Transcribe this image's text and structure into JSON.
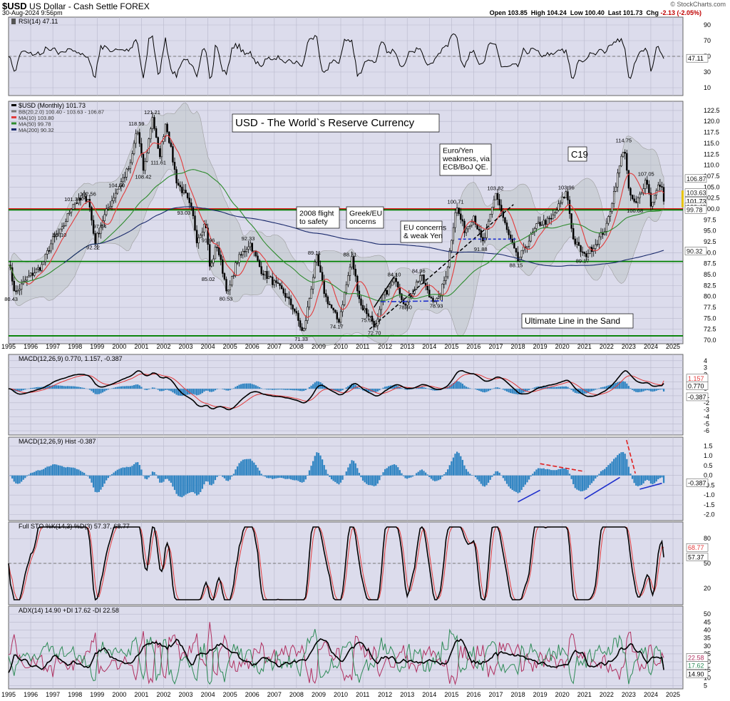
{
  "header": {
    "symbol": "$USD",
    "name": "US Dollar - Cash Settle FOREX",
    "date": "30-Aug-2024 9:56pm",
    "source": "© StockCharts.com",
    "open_label": "Open",
    "open": "103.85",
    "high_label": "High",
    "high": "104.24",
    "low_label": "Low",
    "low": "100.40",
    "last_label": "Last",
    "last": "101.73",
    "chg_label": "Chg",
    "chg": "-2.13 (-2.05%)"
  },
  "colors": {
    "panel_bg": "#dcdcec",
    "grid": "#b8b8cc",
    "price": "#000000",
    "bollinger": "#9e9e9e",
    "ma10": "#e23b3b",
    "ma50": "#2e8b2e",
    "ma200": "#1a2a6c",
    "hist": "#2f84c2",
    "red_line": "#e00000",
    "green_line": "#008000"
  },
  "x_axis": {
    "years": [
      "1995",
      "1996",
      "1997",
      "1998",
      "1999",
      "2000",
      "2001",
      "2002",
      "2003",
      "2004",
      "2005",
      "2006",
      "2007",
      "2008",
      "2009",
      "2010",
      "2011",
      "2012",
      "2013",
      "2014",
      "2015",
      "2016",
      "2017",
      "2018",
      "2019",
      "2020",
      "2021",
      "2022",
      "2023",
      "2024",
      "2025"
    ]
  },
  "panels": {
    "rsi": {
      "title": "RSI(14) 47.11",
      "ticks": [
        "90",
        "70",
        "50",
        "30",
        "10"
      ],
      "last": "47.11"
    },
    "price": {
      "legend": [
        "$USD (Monthly) 101.73",
        "BB(20,2.0) 100.40 - 103.63 - 106.87",
        "MA(10) 103.80",
        "MA(50) 99.78",
        "MA(200) 90.32"
      ],
      "ticks": [
        "122.5",
        "120.0",
        "117.5",
        "115.0",
        "112.5",
        "110.0",
        "107.5",
        "105.0",
        "102.5",
        "100.0",
        "97.5",
        "95.0",
        "92.5",
        "90.0",
        "87.5",
        "85.0",
        "82.5",
        "80.0",
        "77.5",
        "75.0",
        "72.5",
        "70.0"
      ],
      "right_labels": [
        "106.87",
        "103.63",
        "101.73",
        "100.40",
        "99.78",
        "90.32"
      ],
      "annotations": {
        "title": "USD - The World`s Reserve Currency",
        "flight": "2008 flight to safety",
        "greek": "Greek/EU Concerns",
        "eu": "EU concerns & weak Yen",
        "euro_yen": "Euro/Yen weakness, via ECB/BoJ QE.",
        "c19": "C19",
        "line_sand": "Ultimate Line in the Sand"
      },
      "point_labels": [
        "80.43",
        "101.34",
        "102.56",
        "95.10",
        "92.22",
        "97.04",
        "104.50",
        "118.59",
        "121.21",
        "108.42",
        "111.61",
        "93.03",
        "91.96",
        "85.02",
        "80.53",
        "92.33",
        "89.11",
        "71.33",
        "74.17",
        "88.71",
        "75.63",
        "72.70",
        "84.10",
        "84.96",
        "78.60",
        "78.93",
        "100.71",
        "91.88",
        "103.82",
        "88.15",
        "103.96",
        "89.17",
        "114.75",
        "100.68",
        "107.05"
      ]
    },
    "macd": {
      "title": "MACD(12,26,9) 0.770, 1.157, -0.387",
      "ticks": [
        "4",
        "3",
        "2",
        "1",
        "0",
        "-1",
        "-2",
        "-3",
        "-4",
        "-5",
        "-6"
      ],
      "right_labels": [
        "1.157",
        "0.770",
        "-0.387"
      ]
    },
    "hist": {
      "title": "MACD(12,26,9) Hist -0.387",
      "ticks": [
        "1.5",
        "1.0",
        "0.5",
        "0.0",
        "-0.5",
        "-1.0",
        "-1.5",
        "-2.0"
      ],
      "last": "-0.387"
    },
    "sto": {
      "title": "Full STO %K(14,3) %D(3) 57.37, 68.77",
      "ticks": [
        "80",
        "50",
        "20"
      ],
      "right_labels": [
        "68.77",
        "57.37"
      ]
    },
    "adx": {
      "title": "ADX(14) 14.90 +DI 17.62 -DI 22.58",
      "ticks": [
        "50",
        "45",
        "40",
        "35",
        "30",
        "25",
        "20",
        "15",
        "10",
        "5"
      ],
      "right_labels": [
        "22.58",
        "17.62",
        "14.90"
      ]
    }
  },
  "chart_data": {
    "type": "line",
    "title": "USD - The World`s Reserve Currency",
    "x_unit": "year",
    "price_keypoints": [
      [
        1995.0,
        88
      ],
      [
        1995.3,
        80.5
      ],
      [
        1995.8,
        84
      ],
      [
        1996.5,
        87
      ],
      [
        1997.0,
        93
      ],
      [
        1997.4,
        95.1
      ],
      [
        1997.9,
        101.3
      ],
      [
        1998.6,
        102.6
      ],
      [
        1998.9,
        92.2
      ],
      [
        1999.2,
        97
      ],
      [
        1999.9,
        104.5
      ],
      [
        2000.5,
        110
      ],
      [
        2000.8,
        118.6
      ],
      [
        2001.1,
        108.4
      ],
      [
        2001.5,
        121.2
      ],
      [
        2001.8,
        111.6
      ],
      [
        2002.1,
        120
      ],
      [
        2002.6,
        106
      ],
      [
        2003.0,
        103
      ],
      [
        2003.3,
        99
      ],
      [
        2003.5,
        93
      ],
      [
        2003.9,
        97
      ],
      [
        2004.1,
        86
      ],
      [
        2004.4,
        92
      ],
      [
        2004.9,
        80.5
      ],
      [
        2005.3,
        88
      ],
      [
        2005.9,
        92.3
      ],
      [
        2006.4,
        86
      ],
      [
        2006.8,
        84
      ],
      [
        2007.4,
        81
      ],
      [
        2007.9,
        77
      ],
      [
        2008.3,
        71.3
      ],
      [
        2008.9,
        89.1
      ],
      [
        2009.3,
        80
      ],
      [
        2009.9,
        74.2
      ],
      [
        2010.5,
        88.7
      ],
      [
        2010.9,
        78
      ],
      [
        2011.3,
        75.6
      ],
      [
        2011.6,
        72.7
      ],
      [
        2011.9,
        80
      ],
      [
        2012.5,
        84.1
      ],
      [
        2012.8,
        79
      ],
      [
        2013.0,
        78.6
      ],
      [
        2013.6,
        85
      ],
      [
        2014.0,
        80
      ],
      [
        2014.4,
        78.9
      ],
      [
        2014.8,
        86
      ],
      [
        2015.2,
        100.7
      ],
      [
        2015.6,
        95
      ],
      [
        2016.0,
        98.5
      ],
      [
        2016.4,
        92
      ],
      [
        2016.6,
        95
      ],
      [
        2017.0,
        103.8
      ],
      [
        2017.5,
        95
      ],
      [
        2018.0,
        88.2
      ],
      [
        2018.4,
        92
      ],
      [
        2018.9,
        96.5
      ],
      [
        2019.5,
        97.5
      ],
      [
        2020.2,
        103.96
      ],
      [
        2020.5,
        93
      ],
      [
        2021.0,
        89.2
      ],
      [
        2021.5,
        92
      ],
      [
        2022.0,
        96
      ],
      [
        2022.8,
        114.75
      ],
      [
        2023.0,
        104
      ],
      [
        2023.3,
        100.7
      ],
      [
        2023.8,
        107.05
      ],
      [
        2024.0,
        101
      ],
      [
        2024.4,
        105.8
      ],
      [
        2024.67,
        101.73
      ]
    ],
    "horizontal_lines": [
      {
        "value": 100.0,
        "color": "red"
      },
      {
        "value": 99.78,
        "color": "green"
      },
      {
        "value": 88.0,
        "color": "green"
      },
      {
        "value": 71.0,
        "color": "green"
      }
    ],
    "last": {
      "price": 101.73,
      "rsi": 47.11,
      "macd": 0.77,
      "signal": 1.157,
      "hist": -0.387,
      "k": 57.37,
      "d": 68.77,
      "adx": 14.9,
      "plus_di": 17.62,
      "minus_di": 22.58
    }
  }
}
